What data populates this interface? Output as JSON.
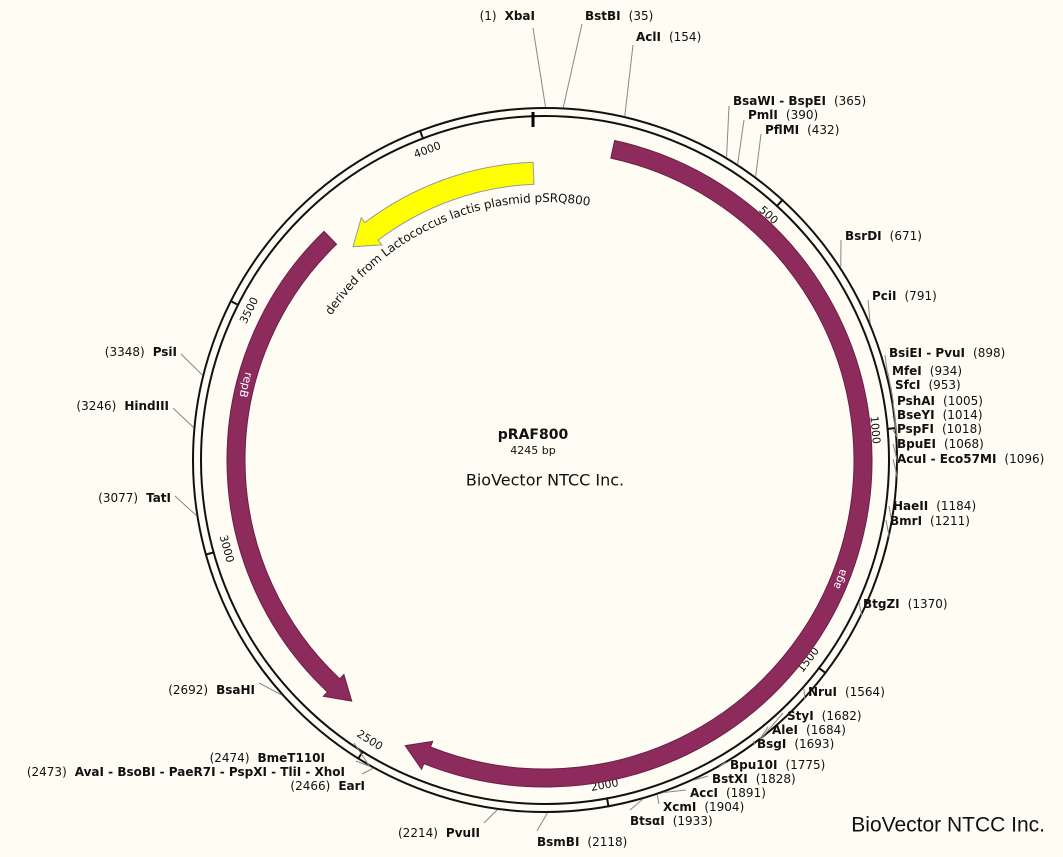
{
  "name": "pRAF800",
  "length": {
    "value": 4245,
    "label": "4245 bp"
  },
  "center_text": "BioVector NTCC Inc.",
  "watermark": "BioVector NTCC Inc.",
  "ticks": [
    500,
    1000,
    1500,
    2000,
    2500,
    3000,
    3500,
    4000
  ],
  "features": [
    {
      "name": "aga",
      "start": 145,
      "end": 2430,
      "direction": "clockwise",
      "color": "#8e2b5d",
      "label_at": 1320
    },
    {
      "name": "repB",
      "start": 3726,
      "end": 2579,
      "direction": "counterclockwise",
      "color": "#8e2b5d",
      "label_at": 3350
    },
    {
      "name": "derived from Lactococcus lactis plasmid pSRQ800",
      "start": 4218,
      "end": 3750,
      "direction": "counterclockwise",
      "color": "#ffff00"
    }
  ],
  "sites": [
    {
      "name": "XbaI",
      "position": 1,
      "label": "(1)"
    },
    {
      "name": "BstBI",
      "position": 35,
      "label": "(35)"
    },
    {
      "name": "AclI",
      "position": 154,
      "label": "(154)"
    },
    {
      "name": "BsaWI - BspEI",
      "position": 365,
      "label": "(365)"
    },
    {
      "name": "PmlI",
      "position": 390,
      "label": "(390)"
    },
    {
      "name": "PflMI",
      "position": 432,
      "label": "(432)"
    },
    {
      "name": "BsrDI",
      "position": 671,
      "label": "(671)"
    },
    {
      "name": "PciI",
      "position": 791,
      "label": "(791)"
    },
    {
      "name": "BsiEI - PvuI",
      "position": 898,
      "label": "(898)"
    },
    {
      "name": "MfeI",
      "position": 934,
      "label": "(934)"
    },
    {
      "name": "SfcI",
      "position": 953,
      "label": "(953)"
    },
    {
      "name": "PshAI",
      "position": 1005,
      "label": "(1005)"
    },
    {
      "name": "BseYI",
      "position": 1014,
      "label": "(1014)"
    },
    {
      "name": "PspFI",
      "position": 1018,
      "label": "(1018)"
    },
    {
      "name": "BpuEI",
      "position": 1068,
      "label": "(1068)"
    },
    {
      "name": "AcuI - Eco57MI",
      "position": 1096,
      "label": "(1096)"
    },
    {
      "name": "HaeII",
      "position": 1184,
      "label": "(1184)"
    },
    {
      "name": "BmrI",
      "position": 1211,
      "label": "(1211)"
    },
    {
      "name": "BtgZI",
      "position": 1370,
      "label": "(1370)"
    },
    {
      "name": "NruI",
      "position": 1564,
      "label": "(1564)"
    },
    {
      "name": "StyI",
      "position": 1682,
      "label": "(1682)"
    },
    {
      "name": "AleI",
      "position": 1684,
      "label": "(1684)"
    },
    {
      "name": "BsgI",
      "position": 1693,
      "label": "(1693)"
    },
    {
      "name": "Bpu10I",
      "position": 1775,
      "label": "(1775)"
    },
    {
      "name": "BstXI",
      "position": 1828,
      "label": "(1828)"
    },
    {
      "name": "AccI",
      "position": 1891,
      "label": "(1891)"
    },
    {
      "name": "XcmI",
      "position": 1904,
      "label": "(1904)"
    },
    {
      "name": "BtsαI",
      "position": 1933,
      "label": "(1933)"
    },
    {
      "name": "BsmBI",
      "position": 2118,
      "label": "(2118)"
    },
    {
      "name": "PvuII",
      "position": 2214,
      "label": "(2214)"
    },
    {
      "name": "EarI",
      "position": 2466,
      "label": "(2466)"
    },
    {
      "name": "AvaI - BsoBI - PaeR7I - PspXI - TliI - XhoI",
      "position": 2473,
      "label": "(2473)"
    },
    {
      "name": "BmeT110I",
      "position": 2474,
      "label": "(2474)"
    },
    {
      "name": "BsaHI",
      "position": 2692,
      "label": "(2692)"
    },
    {
      "name": "TatI",
      "position": 3077,
      "label": "(3077)"
    },
    {
      "name": "HindIII",
      "position": 3246,
      "label": "(3246)"
    },
    {
      "name": "PsiI",
      "position": 3348,
      "label": "(3348)"
    }
  ]
}
